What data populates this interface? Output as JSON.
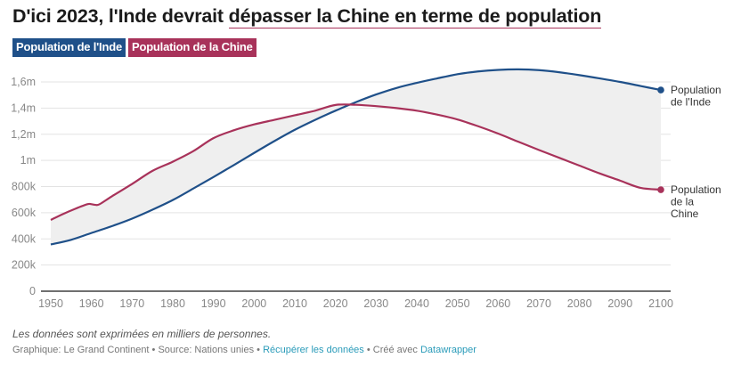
{
  "header": {
    "title_before": "D'ici 2023, l'Inde devrait ",
    "title_highlight": "dépasser la Chine en terme de population"
  },
  "legend": [
    {
      "label": "Population de l'Inde",
      "color": "#1f5089"
    },
    {
      "label": "Population de la Chine",
      "color": "#a8325a"
    }
  ],
  "chart_data": {
    "type": "line",
    "title": "D'ici 2023, l'Inde devrait dépasser la Chine en terme de population",
    "xlabel": "",
    "ylabel": "",
    "xlim": [
      1950,
      2100
    ],
    "ylim": [
      0,
      1600000
    ],
    "x_ticks": [
      1950,
      1960,
      1970,
      1980,
      1990,
      2000,
      2010,
      2020,
      2030,
      2040,
      2050,
      2060,
      2070,
      2080,
      2090,
      2100
    ],
    "x_tick_labels": [
      "1950",
      "1960",
      "1970",
      "1980",
      "1990",
      "2000",
      "2010",
      "2020",
      "2030",
      "2040",
      "2050",
      "2060",
      "2070",
      "2080",
      "2090",
      "2100"
    ],
    "y_ticks": [
      0,
      200000,
      400000,
      600000,
      800000,
      1000000,
      1200000,
      1400000,
      1600000
    ],
    "y_tick_labels": [
      "0",
      "200k",
      "400k",
      "600k",
      "800k",
      "1m",
      "1,2m",
      "1,4m",
      "1,6m"
    ],
    "grid": true,
    "fill_between_series": true,
    "fill_color": "#efefef",
    "series": [
      {
        "name": "Population de l'Inde",
        "end_label": [
          "Population",
          "de l'Inde"
        ],
        "color": "#1f5089",
        "x": [
          1950,
          1955,
          1960,
          1965,
          1970,
          1975,
          1980,
          1985,
          1990,
          1995,
          2000,
          2005,
          2010,
          2015,
          2020,
          2025,
          2030,
          2035,
          2040,
          2045,
          2050,
          2055,
          2060,
          2065,
          2070,
          2075,
          2080,
          2085,
          2090,
          2095,
          2100
        ],
        "values": [
          357000,
          393000,
          445000,
          497000,
          555000,
          623000,
          697000,
          784000,
          873000,
          964000,
          1057000,
          1148000,
          1234000,
          1310000,
          1380000,
          1445000,
          1504000,
          1554000,
          1593000,
          1627000,
          1659000,
          1680000,
          1692000,
          1696000,
          1690000,
          1674000,
          1652000,
          1627000,
          1600000,
          1569000,
          1538000
        ]
      },
      {
        "name": "Population de la Chine",
        "end_label": [
          "Population",
          "de la",
          "Chine"
        ],
        "color": "#a8325a",
        "x": [
          1950,
          1953,
          1956,
          1959,
          1960,
          1961,
          1962,
          1965,
          1970,
          1975,
          1980,
          1985,
          1990,
          1995,
          2000,
          2005,
          2010,
          2015,
          2020,
          2025,
          2030,
          2035,
          2040,
          2045,
          2050,
          2055,
          2060,
          2065,
          2070,
          2075,
          2080,
          2085,
          2090,
          2095,
          2100
        ],
        "values": [
          545000,
          590000,
          630000,
          665000,
          665000,
          660000,
          665000,
          725000,
          820000,
          920000,
          990000,
          1070000,
          1170000,
          1230000,
          1275000,
          1310000,
          1345000,
          1380000,
          1424000,
          1425000,
          1415000,
          1400000,
          1380000,
          1350000,
          1313000,
          1262000,
          1205000,
          1142000,
          1080000,
          1020000,
          960000,
          900000,
          845000,
          790000,
          776000
        ]
      }
    ]
  },
  "notes": "Les données sont exprimées en milliers de personnes.",
  "byline": {
    "graphic": "Graphique: Le Grand Continent",
    "separator": " • ",
    "source": "Source: Nations unies",
    "get_data": "Récupérer les données",
    "created_with": "Créé avec ",
    "tool": "Datawrapper"
  }
}
